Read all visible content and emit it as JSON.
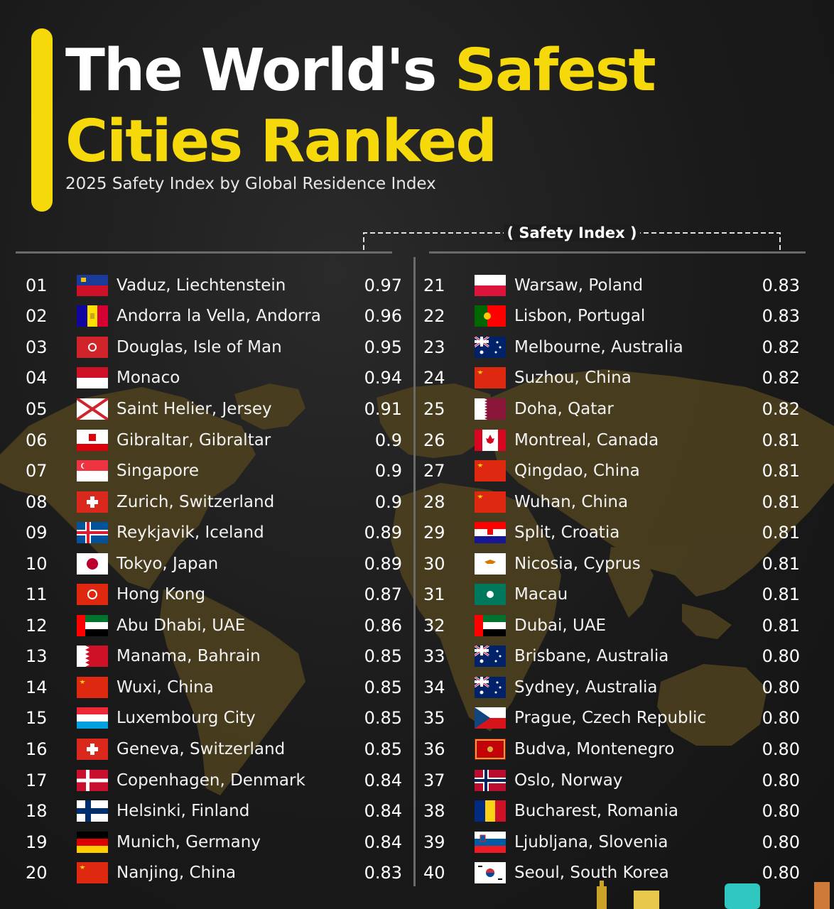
{
  "header": {
    "title_white": "The World's ",
    "title_yellow_1": "Safest",
    "title_yellow_2": "Cities Ranked",
    "subtitle": "2025 Safety Index by Global Residence Index",
    "index_label": "( Safety Index )"
  },
  "colors": {
    "accent": "#f5d90a",
    "background": "#1a1a1a",
    "map": "#5a4a22"
  },
  "left_rows": [
    {
      "rank": "01",
      "flag": "liechtenstein-flag",
      "city": "Vaduz, Liechtenstein",
      "score": "0.97"
    },
    {
      "rank": "02",
      "flag": "andorra-flag",
      "city": "Andorra la Vella, Andorra",
      "score": "0.96"
    },
    {
      "rank": "03",
      "flag": "isle-of-man-flag",
      "city": "Douglas, Isle of Man",
      "score": "0.95"
    },
    {
      "rank": "04",
      "flag": "monaco-flag",
      "city": "Monaco",
      "score": "0.94"
    },
    {
      "rank": "05",
      "flag": "jersey-flag",
      "city": "Saint Helier, Jersey",
      "score": "0.91"
    },
    {
      "rank": "06",
      "flag": "gibraltar-flag",
      "city": "Gibraltar, Gibraltar",
      "score": "0.9"
    },
    {
      "rank": "07",
      "flag": "singapore-flag",
      "city": "Singapore",
      "score": "0.9"
    },
    {
      "rank": "08",
      "flag": "switzerland-flag",
      "city": "Zurich, Switzerland",
      "score": "0.9"
    },
    {
      "rank": "09",
      "flag": "iceland-flag",
      "city": "Reykjavik, Iceland",
      "score": "0.89"
    },
    {
      "rank": "10",
      "flag": "japan-flag",
      "city": "Tokyo, Japan",
      "score": "0.89"
    },
    {
      "rank": "11",
      "flag": "hong-kong-flag",
      "city": "Hong Kong",
      "score": "0.87"
    },
    {
      "rank": "12",
      "flag": "uae-flag",
      "city": "Abu Dhabi, UAE",
      "score": "0.86"
    },
    {
      "rank": "13",
      "flag": "bahrain-flag",
      "city": "Manama, Bahrain",
      "score": "0.85"
    },
    {
      "rank": "14",
      "flag": "china-flag",
      "city": "Wuxi, China",
      "score": "0.85"
    },
    {
      "rank": "15",
      "flag": "luxembourg-flag",
      "city": "Luxembourg City",
      "score": "0.85"
    },
    {
      "rank": "16",
      "flag": "switzerland-flag",
      "city": "Geneva, Switzerland",
      "score": "0.85"
    },
    {
      "rank": "17",
      "flag": "denmark-flag",
      "city": "Copenhagen, Denmark",
      "score": "0.84"
    },
    {
      "rank": "18",
      "flag": "finland-flag",
      "city": "Helsinki, Finland",
      "score": "0.84"
    },
    {
      "rank": "19",
      "flag": "germany-flag",
      "city": "Munich, Germany",
      "score": "0.84"
    },
    {
      "rank": "20",
      "flag": "china-flag",
      "city": "Nanjing, China",
      "score": "0.83"
    }
  ],
  "right_rows": [
    {
      "rank": "21",
      "flag": "poland-flag",
      "city": "Warsaw, Poland",
      "score": "0.83"
    },
    {
      "rank": "22",
      "flag": "portugal-flag",
      "city": "Lisbon, Portugal",
      "score": "0.83"
    },
    {
      "rank": "23",
      "flag": "australia-flag",
      "city": "Melbourne, Australia",
      "score": "0.82"
    },
    {
      "rank": "24",
      "flag": "china-flag",
      "city": "Suzhou, China",
      "score": "0.82"
    },
    {
      "rank": "25",
      "flag": "qatar-flag",
      "city": "Doha, Qatar",
      "score": "0.82"
    },
    {
      "rank": "26",
      "flag": "canada-flag",
      "city": "Montreal, Canada",
      "score": "0.81"
    },
    {
      "rank": "27",
      "flag": "china-flag",
      "city": "Qingdao, China",
      "score": "0.81"
    },
    {
      "rank": "28",
      "flag": "china-flag",
      "city": "Wuhan, China",
      "score": "0.81"
    },
    {
      "rank": "29",
      "flag": "croatia-flag",
      "city": "Split, Croatia",
      "score": "0.81"
    },
    {
      "rank": "30",
      "flag": "cyprus-flag",
      "city": "Nicosia, Cyprus",
      "score": "0.81"
    },
    {
      "rank": "31",
      "flag": "macau-flag",
      "city": "Macau",
      "score": "0.81"
    },
    {
      "rank": "32",
      "flag": "uae-flag",
      "city": "Dubai, UAE",
      "score": "0.81"
    },
    {
      "rank": "33",
      "flag": "australia-flag",
      "city": "Brisbane, Australia",
      "score": "0.80"
    },
    {
      "rank": "34",
      "flag": "australia-flag",
      "city": "Sydney, Australia",
      "score": "0.80"
    },
    {
      "rank": "35",
      "flag": "czech-flag",
      "city": "Prague, Czech Republic",
      "score": "0.80"
    },
    {
      "rank": "36",
      "flag": "montenegro-flag",
      "city": "Budva, Montenegro",
      "score": "0.80"
    },
    {
      "rank": "37",
      "flag": "norway-flag",
      "city": "Oslo, Norway",
      "score": "0.80"
    },
    {
      "rank": "38",
      "flag": "romania-flag",
      "city": "Bucharest, Romania",
      "score": "0.80"
    },
    {
      "rank": "39",
      "flag": "slovenia-flag",
      "city": "Ljubljana, Slovenia",
      "score": "0.80"
    },
    {
      "rank": "40",
      "flag": "south-korea-flag",
      "city": "Seoul, South Korea",
      "score": "0.80"
    }
  ]
}
